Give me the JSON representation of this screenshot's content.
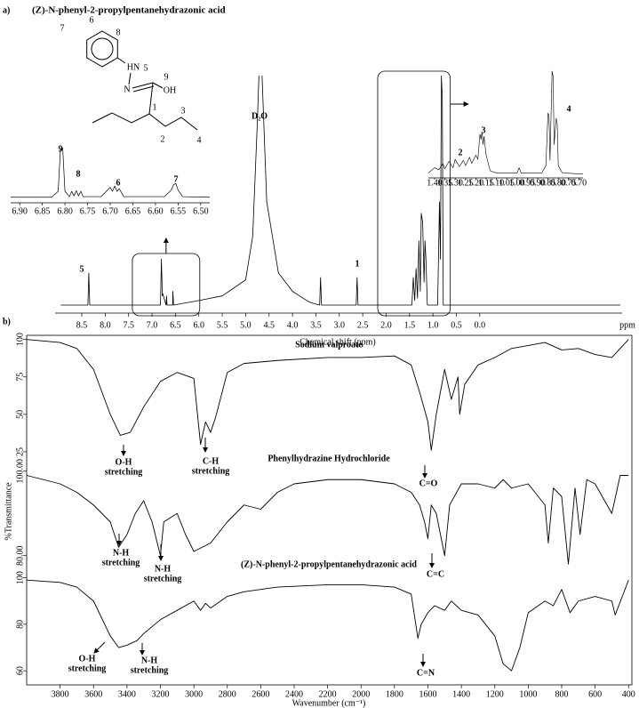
{
  "panel_labels": [
    "a)",
    "b)"
  ],
  "structure": {
    "name": "(Z)-N-phenyl-2-propylpentanehydrazonic acid",
    "labels": [
      "6",
      "7",
      "8",
      "HN",
      "5",
      "N",
      "9",
      "OH",
      "1",
      "2",
      "3",
      "4"
    ]
  },
  "chart_data": [
    {
      "type": "line",
      "xlabel": "Chemical shift (ppm)",
      "x_unit": "ppm",
      "peak_labels": [
        "5",
        "D₂O",
        "1"
      ],
      "color": "#000000",
      "x": [
        8.95,
        8.37,
        8.35,
        8.33,
        7.0,
        6.82,
        6.8,
        6.78,
        6.77,
        6.7,
        6.69,
        6.68,
        6.56,
        6.555,
        6.54,
        6.0,
        5.5,
        5.0,
        4.85,
        4.75,
        4.7,
        4.65,
        4.55,
        4.3,
        4.0,
        3.7,
        3.6,
        3.42,
        3.4,
        3.38,
        2.64,
        2.62,
        2.6,
        1.45,
        1.42,
        1.39,
        1.36,
        1.33,
        1.3,
        1.27,
        1.25,
        1.22,
        1.19,
        1.17,
        1.15,
        1.12,
        0.9,
        0.86,
        0.84,
        0.82,
        0.8,
        0.78,
        0.5,
        -3.0
      ],
      "values": [
        0,
        0,
        14,
        0,
        0,
        0,
        20,
        4,
        5,
        0,
        4,
        0,
        0,
        6,
        0,
        2,
        4,
        11,
        30,
        80,
        110,
        100,
        45,
        14,
        6,
        2,
        1,
        0,
        12,
        0,
        0,
        12,
        0,
        0,
        12,
        2,
        16,
        3,
        28,
        6,
        40,
        36,
        10,
        28,
        20,
        0,
        0,
        45,
        20,
        100,
        90,
        0,
        0,
        0
      ],
      "xlim": [
        9.07,
        -3.04
      ],
      "ylim": [
        0,
        100
      ],
      "xticks": [
        8.5,
        {
          "value": 8,
          "label": "8.0"
        },
        7.5,
        {
          "value": 7,
          "label": "7.0"
        },
        6.5,
        {
          "value": 6,
          "label": "6.0"
        },
        5.5,
        {
          "value": 5,
          "label": "5.0"
        },
        4.5,
        {
          "value": 4,
          "label": "4.0"
        },
        3.5,
        {
          "value": 3,
          "label": "3.0"
        },
        2.5,
        {
          "value": 2,
          "label": "2.0"
        },
        1.5,
        {
          "value": 1,
          "label": "1.0"
        },
        0.5,
        {
          "value": 0,
          "label": "0.0"
        }
      ]
    },
    {
      "type": "line",
      "peak_labels": [
        "9",
        "8",
        "6",
        "7"
      ],
      "color": "#000000",
      "x": [
        6.92,
        6.83,
        6.815,
        6.81,
        6.805,
        6.8,
        6.79,
        6.785,
        6.78,
        6.775,
        6.77,
        6.765,
        6.76,
        6.72,
        6.7,
        6.695,
        6.69,
        6.685,
        6.68,
        6.67,
        6.58,
        6.565,
        6.56,
        6.555,
        6.55,
        6.54,
        6.48
      ],
      "values": [
        3,
        3,
        12,
        75,
        78,
        12,
        4,
        12,
        5,
        13,
        5,
        12,
        4,
        4,
        18,
        12,
        20,
        12,
        16,
        4,
        4,
        14,
        22,
        24,
        14,
        4,
        3
      ],
      "xlim": [
        6.92,
        6.48
      ],
      "ylim": [
        0,
        100
      ],
      "xticks": [
        {
          "value": 6.9,
          "label": "6.90"
        },
        6.85,
        {
          "value": 6.8,
          "label": "6.80"
        },
        6.75,
        {
          "value": 6.7,
          "label": "6.70"
        },
        6.65,
        {
          "value": 6.6,
          "label": "6.60"
        },
        6.55,
        {
          "value": 6.5,
          "label": "6.50"
        }
      ]
    },
    {
      "type": "line",
      "peak_labels": [
        "2",
        "3",
        "4"
      ],
      "color": "#000000",
      "x": [
        1.43,
        1.4,
        1.38,
        1.36,
        1.35,
        1.33,
        1.31,
        1.3,
        1.28,
        1.26,
        1.25,
        1.23,
        1.22,
        1.2,
        1.19,
        1.18,
        1.175,
        1.17,
        1.165,
        1.16,
        1.15,
        1.13,
        1.1,
        1.0,
        0.99,
        0.98,
        0.88,
        0.86,
        0.85,
        0.845,
        0.84,
        0.83,
        0.825,
        0.82,
        0.81,
        0.805,
        0.8,
        0.78,
        0.68
      ],
      "values": [
        3,
        8,
        6,
        12,
        7,
        14,
        8,
        16,
        9,
        15,
        10,
        18,
        12,
        20,
        16,
        40,
        35,
        42,
        30,
        38,
        20,
        5,
        3,
        3,
        8,
        3,
        3,
        10,
        60,
        58,
        15,
        100,
        95,
        30,
        55,
        50,
        10,
        3,
        2
      ],
      "xlim": [
        1.43,
        0.68
      ],
      "ylim": [
        0,
        100
      ],
      "xticks": [
        {
          "value": 1.4,
          "label": "1.40"
        },
        1.35,
        {
          "value": 1.3,
          "label": "1.30"
        },
        1.25,
        {
          "value": 1.2,
          "label": "1.20"
        },
        1.15,
        {
          "value": 1.1,
          "label": "1.10"
        },
        1.05,
        {
          "value": 1,
          "label": "1.00"
        },
        0.95,
        {
          "value": 0.9,
          "label": "0.90"
        },
        0.85,
        {
          "value": 0.8,
          "label": "0.80"
        },
        0.75,
        {
          "value": 0.7,
          "label": "0.70"
        }
      ]
    },
    {
      "type": "line",
      "title": "Sodium valproate",
      "color": "#000000",
      "annotations": [
        [
          "O-H",
          "stretching"
        ],
        [
          "C-H",
          "stretching"
        ],
        [
          "C=O"
        ]
      ],
      "x": [
        4000,
        3800,
        3700,
        3600,
        3500,
        3440,
        3380,
        3300,
        3200,
        3100,
        3000,
        2960,
        2930,
        2900,
        2870,
        2800,
        2700,
        2500,
        2200,
        2000,
        1800,
        1700,
        1650,
        1600,
        1580,
        1550,
        1500,
        1460,
        1420,
        1410,
        1380,
        1300,
        1200,
        1100,
        1000,
        900,
        800,
        700,
        600,
        500,
        400
      ],
      "values": [
        100,
        98,
        94,
        80,
        50,
        36,
        38,
        55,
        72,
        78,
        74,
        30,
        45,
        38,
        48,
        78,
        84,
        86,
        88,
        88,
        89,
        83,
        65,
        45,
        26,
        50,
        80,
        60,
        75,
        50,
        70,
        83,
        88,
        94,
        96,
        98,
        93,
        94,
        90,
        88,
        100
      ],
      "xlim": [
        4000,
        380
      ],
      "ylim": [
        22,
        101
      ],
      "yticks": [
        100,
        75,
        50,
        25
      ]
    },
    {
      "type": "line",
      "title": "Phenylhydrazine Hydrochloride",
      "ylabel": "%Transmittance",
      "color": "#000000",
      "annotations": [
        [
          "N-H",
          "stretching"
        ],
        [
          "N-H",
          "stretching"
        ],
        [
          "C=C"
        ]
      ],
      "x": [
        4000,
        3800,
        3700,
        3600,
        3500,
        3450,
        3400,
        3350,
        3300,
        3250,
        3200,
        3180,
        3100,
        3050,
        3000,
        2900,
        2800,
        2700,
        2600,
        2500,
        2400,
        2200,
        2000,
        1800,
        1700,
        1650,
        1620,
        1600,
        1580,
        1550,
        1500,
        1470,
        1400,
        1300,
        1200,
        1150,
        1100,
        1000,
        900,
        880,
        850,
        800,
        760,
        720,
        690,
        650,
        600,
        500,
        450,
        400
      ],
      "values": [
        99,
        97,
        95,
        92,
        88,
        82,
        85,
        90,
        93,
        88,
        80,
        88,
        90,
        85,
        81,
        83,
        88,
        92,
        91,
        95,
        97,
        98,
        98,
        97,
        95,
        92,
        88,
        84,
        92,
        90,
        80,
        92,
        97,
        97,
        96,
        98,
        96,
        97,
        92,
        83,
        96,
        94,
        78,
        96,
        85,
        98,
        97,
        90,
        99,
        99
      ],
      "xlim": [
        4000,
        380
      ],
      "ylim": [
        77,
        101
      ],
      "yticks": [
        {
          "value": 100,
          "label": "100.00"
        },
        {
          "value": 80,
          "label": "80.00"
        }
      ]
    },
    {
      "type": "line",
      "title": "(Z)-N-phenyl-2-propylpentanehydrazonic acid",
      "xlabel": "Wavenumber (cm⁻¹)",
      "color": "#000000",
      "annotations": [
        [
          "O-H",
          "stretching"
        ],
        [
          "N-H",
          "stretching"
        ],
        [
          "C=N"
        ]
      ],
      "x": [
        4000,
        3800,
        3700,
        3600,
        3500,
        3450,
        3400,
        3340,
        3300,
        3200,
        3100,
        3000,
        2960,
        2930,
        2900,
        2800,
        2700,
        2500,
        2200,
        2000,
        1800,
        1700,
        1660,
        1640,
        1600,
        1560,
        1500,
        1460,
        1400,
        1300,
        1200,
        1150,
        1100,
        1050,
        1000,
        900,
        850,
        800,
        750,
        700,
        600,
        500,
        480,
        400
      ],
      "values": [
        99,
        98,
        96,
        90,
        75,
        70,
        71,
        73,
        76,
        82,
        86,
        90,
        86,
        89,
        87,
        92,
        94,
        96,
        97,
        97,
        96,
        93,
        74,
        80,
        85,
        88,
        86,
        90,
        86,
        84,
        75,
        63,
        60,
        70,
        85,
        90,
        88,
        95,
        85,
        90,
        92,
        90,
        84,
        99
      ],
      "xlim": [
        4000,
        380
      ],
      "ylim": [
        57,
        101
      ],
      "yticks": [
        100,
        80,
        60
      ],
      "xticks": [
        3800,
        3600,
        3400,
        3200,
        3000,
        2800,
        2600,
        2400,
        2200,
        2000,
        1800,
        1600,
        1400,
        1200,
        1000,
        800,
        600,
        400
      ]
    }
  ]
}
